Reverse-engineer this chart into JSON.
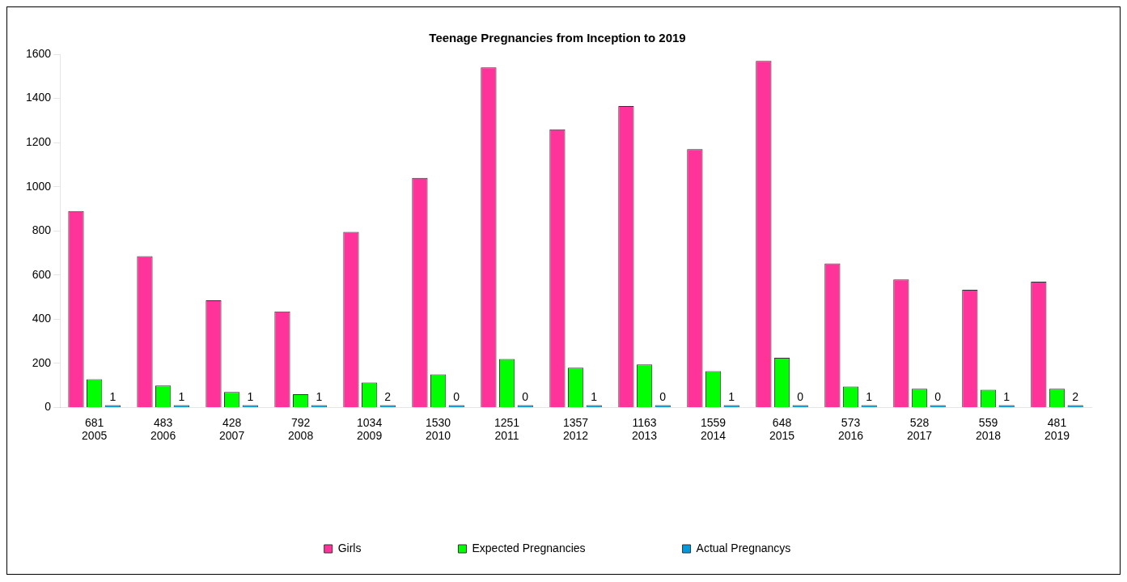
{
  "chart_data": {
    "type": "bar",
    "title": "Teenage Pregnancies from Inception to 2019",
    "categories": [
      "681\n2005",
      "483\n2006",
      "428\n2007",
      "792\n2008",
      "1034\n2009",
      "1530\n2010",
      "1251\n2011",
      "1357\n2012",
      "1163\n2013",
      "1559\n2014",
      "648\n2015",
      "573\n2016",
      "528\n2017",
      "559\n2018",
      "481\n2019"
    ],
    "series": [
      {
        "name": "Girls",
        "color": "#ff3399",
        "values": [
          890,
          685,
          485,
          435,
          795,
          1040,
          1540,
          1260,
          1365,
          1170,
          1570,
          652,
          580,
          533,
          570
        ]
      },
      {
        "name": "Expected Pregnancies",
        "color": "#00ff00",
        "values": [
          128,
          100,
          70,
          60,
          113,
          150,
          220,
          180,
          195,
          165,
          225,
          95,
          85,
          80,
          85
        ]
      },
      {
        "name": "Actual Pregnancys",
        "color": "#0099dd",
        "values": [
          1,
          1,
          1,
          1,
          2,
          0,
          0,
          1,
          0,
          1,
          0,
          1,
          0,
          1,
          2
        ],
        "value_labels": [
          "1",
          "1",
          "1",
          "1",
          "2",
          "0",
          "0",
          "1",
          "0",
          "1",
          "0",
          "1",
          "0",
          "1",
          "2"
        ]
      }
    ],
    "ylim": [
      0,
      1600
    ],
    "yticks": [
      0,
      200,
      400,
      600,
      800,
      1000,
      1200,
      1400,
      1600
    ],
    "grid": false,
    "legend": "bottom"
  }
}
